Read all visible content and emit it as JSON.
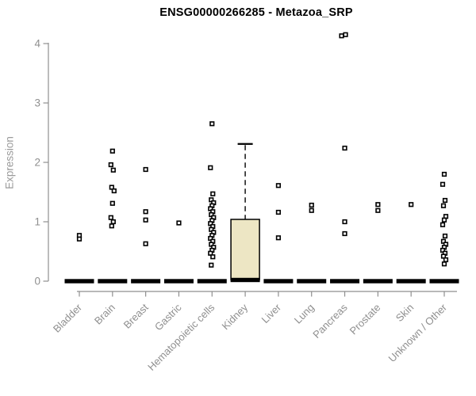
{
  "page": {
    "background": "#ffffff"
  },
  "chart_data": {
    "type": "boxplot",
    "title": "ENSG00000266285 - Metazoa_SRP",
    "ylabel": "Expression",
    "xlabel": "",
    "ylim": [
      0,
      4
    ],
    "yticks": [
      0,
      1,
      2,
      3,
      4
    ],
    "grid": "off",
    "colors": {
      "axis": "#8f8f8f",
      "tick_label": "#8f8f8f",
      "category_label": "#8f8f8f",
      "title": "#000000",
      "box_stroke": "#000000",
      "median": "#000000",
      "marker_stroke": "#000000",
      "marker_fill": "#ffffff",
      "kidney_box_fill": "#EDE6C4"
    },
    "categories": [
      "Bladder",
      "Brain",
      "Breast",
      "Gastric",
      "Hematopoietic cells",
      "Kidney",
      "Liver",
      "Lung",
      "Pancreas",
      "Prostate",
      "Skin",
      "Unknown / Other"
    ],
    "series": [
      {
        "name": "Bladder",
        "q1": 0,
        "median": 0,
        "q3": 0,
        "whisker_low": 0,
        "whisker_high": 0,
        "outliers": [
          0.77,
          0.71
        ]
      },
      {
        "name": "Brain",
        "q1": 0,
        "median": 0,
        "q3": 0,
        "whisker_low": 0,
        "whisker_high": 0,
        "outliers": [
          2.19,
          1.96,
          1.87,
          1.58,
          1.52,
          1.31,
          1.07,
          1.0,
          0.93
        ]
      },
      {
        "name": "Breast",
        "q1": 0,
        "median": 0,
        "q3": 0,
        "whisker_low": 0,
        "whisker_high": 0,
        "outliers": [
          1.88,
          1.17,
          1.03,
          0.63
        ]
      },
      {
        "name": "Gastric",
        "q1": 0,
        "median": 0,
        "q3": 0,
        "whisker_low": 0,
        "whisker_high": 0,
        "outliers": [
          0.98
        ]
      },
      {
        "name": "Hematopoietic cells",
        "q1": 0,
        "median": 0,
        "q3": 0,
        "whisker_low": 0,
        "whisker_high": 0,
        "outliers": [
          2.65,
          1.91,
          1.47,
          1.37,
          1.32,
          1.27,
          1.22,
          1.17,
          1.12,
          1.07,
          1.02,
          0.97,
          0.92,
          0.87,
          0.82,
          0.77,
          0.72,
          0.67,
          0.62,
          0.57,
          0.52,
          0.47,
          0.41,
          0.27
        ]
      },
      {
        "name": "Kidney",
        "q1": 0,
        "median": 0.02,
        "q3": 1.04,
        "whisker_low": 0,
        "whisker_high": 2.31,
        "outliers": [],
        "box_fill": "#EDE6C4"
      },
      {
        "name": "Liver",
        "q1": 0,
        "median": 0,
        "q3": 0,
        "whisker_low": 0,
        "whisker_high": 0,
        "outliers": [
          1.61,
          1.16,
          0.73
        ]
      },
      {
        "name": "Lung",
        "q1": 0,
        "median": 0,
        "q3": 0,
        "whisker_low": 0,
        "whisker_high": 0,
        "outliers": [
          1.28,
          1.19
        ]
      },
      {
        "name": "Pancreas",
        "q1": 0,
        "median": 0,
        "q3": 0,
        "whisker_low": 0,
        "whisker_high": 0,
        "outliers": [
          4.13,
          4.15,
          2.24,
          1.0,
          0.8
        ],
        "outlier_dx": [
          -4,
          1,
          0,
          0,
          0
        ]
      },
      {
        "name": "Prostate",
        "q1": 0,
        "median": 0,
        "q3": 0,
        "whisker_low": 0,
        "whisker_high": 0,
        "outliers": [
          1.29,
          1.19
        ]
      },
      {
        "name": "Skin",
        "q1": 0,
        "median": 0,
        "q3": 0,
        "whisker_low": 0,
        "whisker_high": 0,
        "outliers": [
          1.29
        ]
      },
      {
        "name": "Unknown / Other",
        "q1": 0,
        "median": 0,
        "q3": 0,
        "whisker_low": 0,
        "whisker_high": 0,
        "outliers": [
          1.8,
          1.63,
          1.36,
          1.27,
          1.09,
          1.03,
          0.95,
          0.76,
          0.67,
          0.62,
          0.57,
          0.52,
          0.47,
          0.42,
          0.36,
          0.29
        ]
      }
    ]
  }
}
